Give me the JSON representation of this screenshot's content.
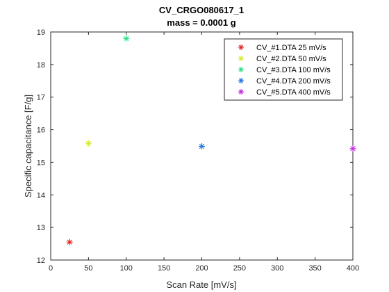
{
  "chart_data": {
    "type": "scatter",
    "title": "CV_CRGO080617_1",
    "subtitle": "mass = 0.0001 g",
    "xlabel": "Scan Rate [mV/s]",
    "ylabel": "Specific capacitance [F/g]",
    "xlim": [
      0,
      400
    ],
    "ylim": [
      12,
      19
    ],
    "xticks": [
      "0",
      "50",
      "100",
      "150",
      "200",
      "250",
      "300",
      "350",
      "400"
    ],
    "yticks": [
      "12",
      "13",
      "14",
      "15",
      "16",
      "17",
      "18",
      "19"
    ],
    "grid": false,
    "legend_position": "top-right",
    "marker": "asterisk",
    "series": [
      {
        "name": "CV_#1.DTA 25 mV/s",
        "color": "#e0201b",
        "x": [
          25
        ],
        "y": [
          12.55
        ]
      },
      {
        "name": "CV_#2.DTA 50 mV/s",
        "color": "#d4e82a",
        "x": [
          50
        ],
        "y": [
          15.58
        ]
      },
      {
        "name": "CV_#3.DTA 100 mV/s",
        "color": "#27e081",
        "x": [
          100
        ],
        "y": [
          18.8
        ]
      },
      {
        "name": "CV_#4.DTA 200 mV/s",
        "color": "#1a6fe0",
        "x": [
          200
        ],
        "y": [
          15.49
        ]
      },
      {
        "name": "CV_#5.DTA 400 mV/s",
        "color": "#c022e0",
        "x": [
          400
        ],
        "y": [
          15.42
        ]
      }
    ]
  }
}
